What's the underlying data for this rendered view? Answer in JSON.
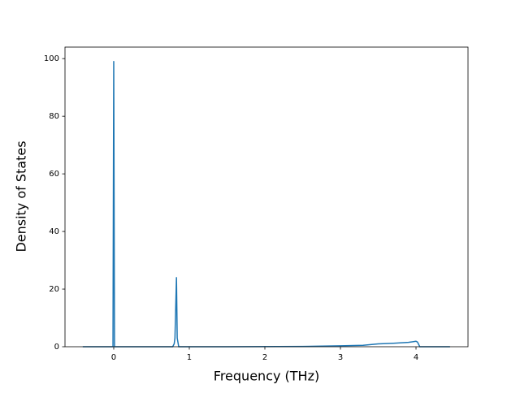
{
  "chart_data": {
    "type": "line",
    "x_label": "Frequency (THz)",
    "y_label": "Density of States",
    "x": [
      -0.41,
      -0.03,
      -0.01,
      0.0,
      0.01,
      0.03,
      0.78,
      0.8,
      0.81,
      0.83,
      0.84,
      0.86,
      1.5,
      2.5,
      3.0,
      3.3,
      3.5,
      3.7,
      3.9,
      4.0,
      4.02,
      4.05,
      4.45
    ],
    "series": [
      {
        "color": "#1f77b4",
        "values": [
          0,
          0,
          0,
          99,
          0,
          0,
          0,
          1,
          3,
          24,
          3,
          0,
          0,
          0.1,
          0.3,
          0.5,
          1.0,
          1.2,
          1.5,
          1.9,
          1.6,
          0,
          0
        ]
      }
    ],
    "xlim": [
      -0.645,
      4.688
    ],
    "ylim": [
      0,
      104
    ],
    "xticks": [
      0,
      1,
      2,
      3,
      4
    ],
    "yticks": [
      0,
      20,
      40,
      60,
      80,
      100
    ],
    "grid": false
  }
}
